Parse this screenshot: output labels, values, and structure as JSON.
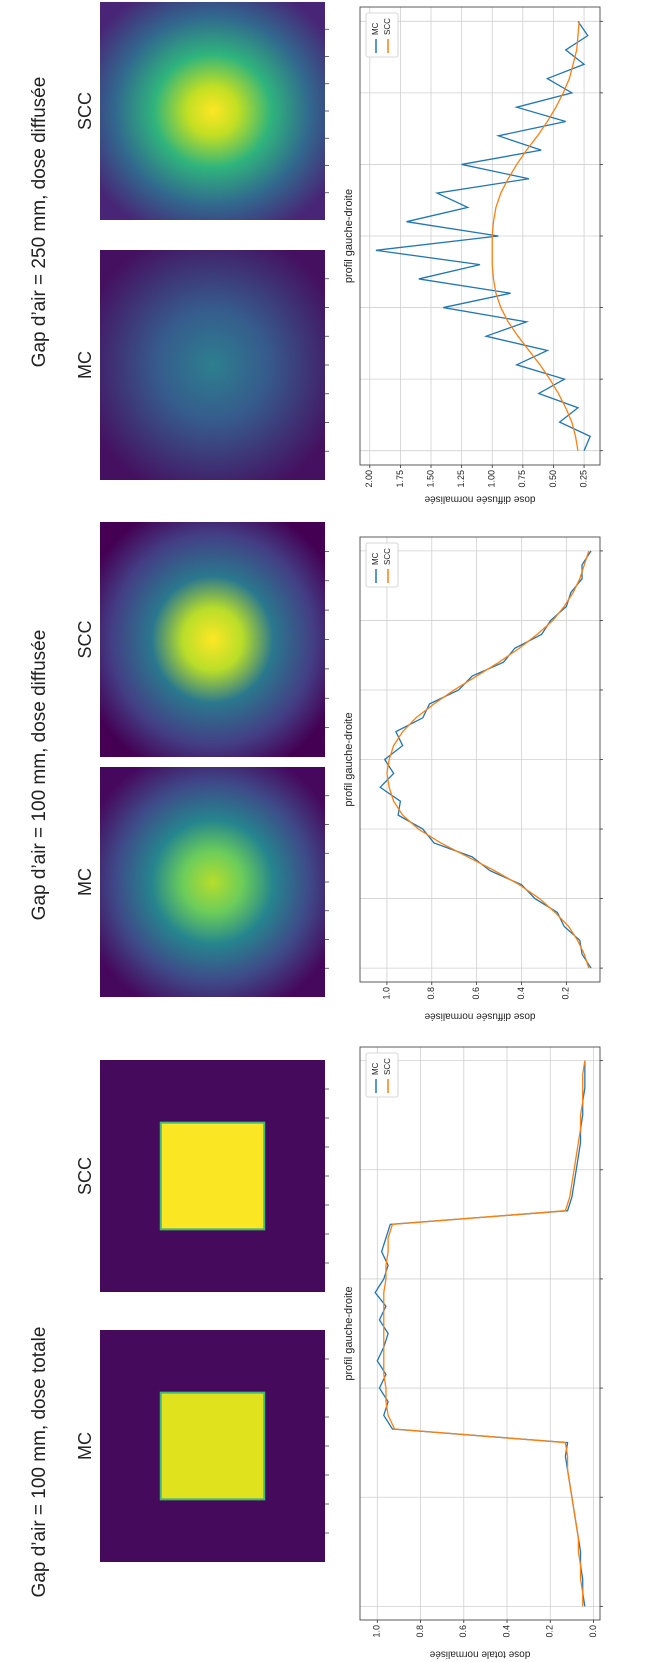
{
  "chart_data": [
    {
      "type": "line",
      "suptitle": "Gap d’air = 100 mm, dose totale",
      "image_titles": [
        "MC",
        "SCC"
      ],
      "title": "profil gauche-droite",
      "ylabel": "dose totale normalisée",
      "x": [
        0,
        1,
        2,
        3,
        4,
        5,
        6,
        7,
        8,
        9,
        10,
        11,
        12,
        13,
        14,
        15,
        16,
        17,
        18,
        19,
        20,
        21,
        22,
        23,
        24,
        25,
        26,
        27,
        28,
        29,
        30,
        31,
        32,
        33,
        34,
        35,
        36,
        37,
        38,
        39,
        40
      ],
      "xlim": [
        -1,
        41
      ],
      "xticks": [
        0,
        8,
        16,
        24,
        32,
        40
      ],
      "ylim": [
        -0.03,
        1.08
      ],
      "yticks": [
        {
          "value": 0,
          "label": "0.0"
        },
        0.2,
        0.4,
        0.6,
        0.8,
        {
          "value": 1,
          "label": "1.0"
        }
      ],
      "grid": true,
      "legend": "upper right",
      "series": [
        {
          "name": "MC",
          "color": "#1f77b4",
          "values": [
            0.04,
            0.05,
            0.05,
            0.06,
            0.06,
            0.07,
            0.08,
            0.09,
            0.1,
            0.11,
            0.12,
            0.13,
            0.12,
            0.93,
            0.97,
            0.95,
            0.99,
            0.96,
            1.0,
            0.97,
            0.95,
            0.99,
            0.96,
            1.01,
            0.97,
            0.95,
            0.98,
            0.96,
            0.94,
            0.12,
            0.1,
            0.09,
            0.08,
            0.07,
            0.06,
            0.06,
            0.05,
            0.05,
            0.04,
            0.04,
            0.04
          ]
        },
        {
          "name": "SCC",
          "color": "#ff7f0e",
          "values": [
            0.05,
            0.05,
            0.06,
            0.06,
            0.07,
            0.07,
            0.08,
            0.09,
            0.1,
            0.11,
            0.12,
            0.12,
            0.13,
            0.92,
            0.95,
            0.96,
            0.96,
            0.97,
            0.97,
            0.97,
            0.97,
            0.97,
            0.97,
            0.97,
            0.96,
            0.96,
            0.95,
            0.95,
            0.93,
            0.13,
            0.11,
            0.1,
            0.09,
            0.08,
            0.07,
            0.06,
            0.06,
            0.05,
            0.05,
            0.05,
            0.04
          ]
        }
      ]
    },
    {
      "type": "line",
      "suptitle": "Gap d’air = 100 mm, dose diffusée",
      "image_titles": [
        "MC",
        "SCC"
      ],
      "title": "profil gauche-droite",
      "ylabel": "dose diffusée normalisée",
      "x": [
        0,
        1,
        2,
        3,
        4,
        5,
        6,
        7,
        8,
        9,
        10,
        11,
        12,
        13,
        14,
        15,
        16,
        17,
        18,
        19,
        20,
        21,
        22,
        23,
        24,
        25,
        26,
        27,
        28,
        29,
        30
      ],
      "xlim": [
        -1,
        31
      ],
      "xticks": [
        0,
        5,
        10,
        15,
        20,
        25,
        30
      ],
      "ylim": [
        0.05,
        1.12
      ],
      "yticks": [
        0.2,
        0.4,
        0.6,
        0.8,
        {
          "value": 1,
          "label": "1.0"
        }
      ],
      "grid": true,
      "legend": "upper right",
      "series": [
        {
          "name": "MC",
          "color": "#1f77b4",
          "values": [
            0.09,
            0.13,
            0.14,
            0.21,
            0.24,
            0.34,
            0.4,
            0.54,
            0.62,
            0.79,
            0.84,
            0.95,
            0.94,
            1.03,
            0.97,
            1.01,
            0.93,
            0.96,
            0.84,
            0.81,
            0.68,
            0.62,
            0.48,
            0.43,
            0.31,
            0.27,
            0.2,
            0.18,
            0.13,
            0.13,
            0.09
          ]
        },
        {
          "name": "SCC",
          "color": "#ff7f0e",
          "values": [
            0.1,
            0.12,
            0.15,
            0.19,
            0.25,
            0.32,
            0.41,
            0.52,
            0.64,
            0.76,
            0.86,
            0.93,
            0.97,
            0.99,
            1.0,
            0.99,
            0.97,
            0.93,
            0.87,
            0.79,
            0.7,
            0.6,
            0.5,
            0.41,
            0.33,
            0.26,
            0.21,
            0.17,
            0.14,
            0.12,
            0.1
          ]
        }
      ]
    },
    {
      "type": "line",
      "suptitle": "Gap d’air = 250 mm, dose diffusée",
      "image_titles": [
        "MC",
        "SCC"
      ],
      "title": "profil gauche-droite",
      "ylabel": "dose diffusée normalisée",
      "x": [
        0,
        1,
        2,
        3,
        4,
        5,
        6,
        7,
        8,
        9,
        10,
        11,
        12,
        13,
        14,
        15,
        16,
        17,
        18,
        19,
        20,
        21,
        22,
        23,
        24,
        25,
        26,
        27,
        28,
        29,
        30
      ],
      "xlim": [
        -1,
        31
      ],
      "xticks": [
        0,
        5,
        10,
        15,
        20,
        25,
        30
      ],
      "ylim": [
        0.12,
        2.08
      ],
      "yticks": [
        0.25,
        {
          "value": 0.5,
          "label": "0.50"
        },
        0.75,
        {
          "value": 1,
          "label": "1.00"
        },
        1.25,
        {
          "value": 1.5,
          "label": "1.50"
        },
        1.75,
        {
          "value": 2,
          "label": "2.00"
        }
      ],
      "grid": true,
      "legend": "upper right",
      "series": [
        {
          "name": "MC",
          "color": "#1f77b4",
          "values": [
            0.25,
            0.2,
            0.45,
            0.3,
            0.62,
            0.41,
            0.8,
            0.55,
            1.05,
            0.72,
            1.4,
            0.85,
            1.6,
            1.1,
            1.95,
            0.95,
            1.7,
            1.2,
            1.45,
            0.7,
            1.25,
            0.6,
            0.95,
            0.4,
            0.8,
            0.35,
            0.55,
            0.25,
            0.4,
            0.22,
            0.3
          ]
        },
        {
          "name": "SCC",
          "color": "#ff7f0e",
          "values": [
            0.3,
            0.32,
            0.35,
            0.4,
            0.46,
            0.53,
            0.61,
            0.7,
            0.79,
            0.87,
            0.93,
            0.97,
            0.99,
            1.0,
            1.0,
            1.0,
            0.99,
            0.97,
            0.93,
            0.87,
            0.8,
            0.72,
            0.63,
            0.55,
            0.48,
            0.42,
            0.37,
            0.34,
            0.31,
            0.3,
            0.29
          ]
        }
      ]
    }
  ]
}
